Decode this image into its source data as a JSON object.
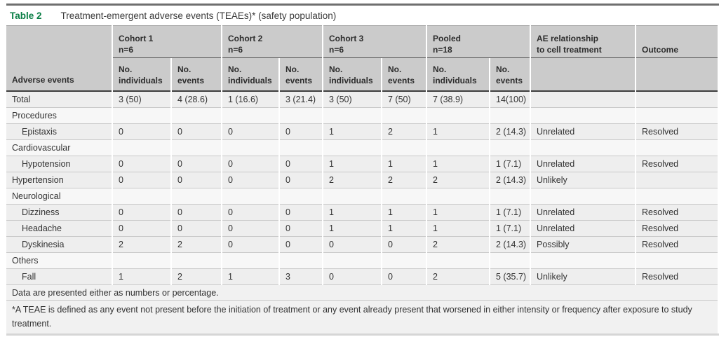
{
  "table": {
    "label": "Table 2",
    "title": "Treatment-emergent adverse events (TEAEs)* (safety population)",
    "columns": {
      "row_header": "Adverse events",
      "groups": [
        {
          "label": "Cohort 1",
          "sub": "n=6"
        },
        {
          "label": "Cohort 2",
          "sub": "n=6"
        },
        {
          "label": "Cohort 3",
          "sub": "n=6"
        },
        {
          "label": "Pooled",
          "sub": "n=18"
        }
      ],
      "subcols": {
        "no": "No.",
        "individuals": "individuals",
        "events": "events"
      },
      "ae_relationship": {
        "line1": "AE relationship",
        "line2": "to cell treatment"
      },
      "outcome": "Outcome"
    },
    "rows": [
      {
        "type": "data",
        "label": "Total",
        "indent": false,
        "values": [
          "3 (50)",
          "4 (28.6)",
          "1 (16.6)",
          "3 (21.4)",
          "3 (50)",
          "7 (50)",
          "7 (38.9)",
          "14(100)"
        ],
        "relationship": "",
        "outcome": ""
      },
      {
        "type": "category",
        "label": "Procedures"
      },
      {
        "type": "data",
        "label": "Epistaxis",
        "indent": true,
        "values": [
          "0",
          "0",
          "0",
          "0",
          "1",
          "2",
          "1",
          "2 (14.3)"
        ],
        "relationship": "Unrelated",
        "outcome": "Resolved"
      },
      {
        "type": "category",
        "label": "Cardiovascular"
      },
      {
        "type": "data",
        "label": "Hypotension",
        "indent": true,
        "values": [
          "0",
          "0",
          "0",
          "0",
          "1",
          "1",
          "1",
          "1 (7.1)"
        ],
        "relationship": "Unrelated",
        "outcome": "Resolved"
      },
      {
        "type": "data",
        "label": "Hypertension",
        "indent": false,
        "values": [
          "0",
          "0",
          "0",
          "0",
          "2",
          "2",
          "2",
          "2 (14.3)"
        ],
        "relationship": "Unlikely",
        "outcome": ""
      },
      {
        "type": "category",
        "label": "Neurological"
      },
      {
        "type": "data",
        "label": "Dizziness",
        "indent": true,
        "values": [
          "0",
          "0",
          "0",
          "0",
          "1",
          "1",
          "1",
          "1 (7.1)"
        ],
        "relationship": "Unrelated",
        "outcome": "Resolved"
      },
      {
        "type": "data",
        "label": "Headache",
        "indent": true,
        "values": [
          "0",
          "0",
          "0",
          "0",
          "1",
          "1",
          "1",
          "1 (7.1)"
        ],
        "relationship": "Unrelated",
        "outcome": "Resolved"
      },
      {
        "type": "data",
        "label": "Dyskinesia",
        "indent": true,
        "values": [
          "2",
          "2",
          "0",
          "0",
          "0",
          "0",
          "2",
          "2 (14.3)"
        ],
        "relationship": "Possibly",
        "outcome": "Resolved"
      },
      {
        "type": "category",
        "label": "Others"
      },
      {
        "type": "data",
        "label": "Fall",
        "indent": true,
        "values": [
          "1",
          "2",
          "1",
          "3",
          "0",
          "0",
          "2",
          "5 (35.7)"
        ],
        "relationship": "Unlikely",
        "outcome": "Resolved"
      }
    ],
    "footnotes": [
      "Data are presented either as numbers or percentage.",
      "*A TEAE is defined as any event not present before the initiation of treatment or any event already present that worsened in either intensity or frequency after exposure to study treatment."
    ],
    "colors": {
      "accent_green": "#0a7e45",
      "header_bg": "#cbcbcb",
      "row_bg": "#eeeeee",
      "category_row_bg": "#f7f7f7",
      "footnote_bg": "#f1f1f1",
      "row_separator": "#c9c9c9",
      "dark_rule": "#3e3e3e",
      "text": "#333333"
    }
  }
}
